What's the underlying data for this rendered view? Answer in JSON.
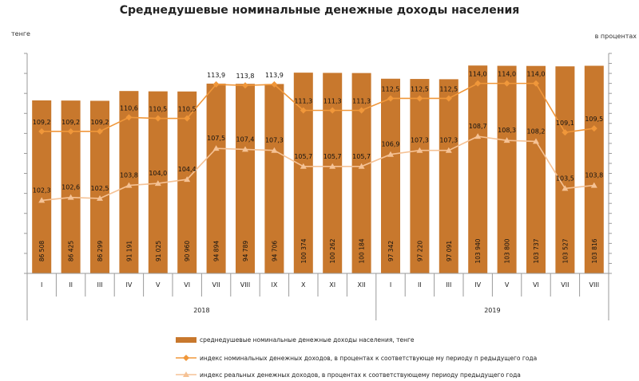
{
  "chart_data": {
    "type": "bar",
    "title": "Среднедушевые номинальные денежные доходы населения",
    "left_unit": "тенге",
    "right_unit": "в процентах",
    "years": [
      {
        "label": "2018",
        "from": 0,
        "to": 11
      },
      {
        "label": "2019",
        "from": 12,
        "to": 19
      }
    ],
    "categories": [
      "I",
      "II",
      "III",
      "IV",
      "V",
      "VI",
      "VII",
      "VIII",
      "IX",
      "X",
      "XI",
      "XII",
      "I",
      "II",
      "III",
      "IV",
      "V",
      "VI",
      "VII",
      "VIII"
    ],
    "series": [
      {
        "name": "среднедушевые номинальные денежные доходы населения, тенге",
        "kind": "bar",
        "axis": "left",
        "color": "#C8782D",
        "values": [
          86508,
          86425,
          86299,
          91191,
          91025,
          90960,
          94894,
          94789,
          94706,
          100374,
          100262,
          100184,
          97342,
          97220,
          97091,
          103940,
          103800,
          103737,
          103527,
          103816
        ],
        "labels": [
          "86 508",
          "86 425",
          "86 299",
          "91 191",
          "91 025",
          "90 960",
          "94 894",
          "94 789",
          "94 706",
          "100 374",
          "100 262",
          "100 184",
          "97 342",
          "97 220",
          "97 091",
          "103 940",
          "103 800",
          "103 737",
          "103 527",
          "103 816"
        ]
      },
      {
        "name": "индекс номинальных денежных доходов, в процентах к соответствующе му периоду п редыдущего года",
        "kind": "line",
        "axis": "right",
        "color": "#F0973A",
        "marker": "diamond",
        "values": [
          109.2,
          109.2,
          109.2,
          110.6,
          110.5,
          110.5,
          113.9,
          113.8,
          113.9,
          111.3,
          111.3,
          111.3,
          112.5,
          112.5,
          112.5,
          114.0,
          114.0,
          114.0,
          109.1,
          109.5
        ],
        "labels": [
          "109,2",
          "109,2",
          "109,2",
          "110,6",
          "110,5",
          "110,5",
          "113,9",
          "113,8",
          "113,9",
          "111,3",
          "111,3",
          "111,3",
          "112,5",
          "112,5",
          "112,5",
          "114,0",
          "114,0",
          "114,0",
          "109,1",
          "109,5"
        ]
      },
      {
        "name": "индекс реальных денежных доходов, в процентах к соответствующему периоду предыдущего года",
        "kind": "line",
        "axis": "right",
        "color": "#F5C295",
        "marker": "triangle",
        "values": [
          102.3,
          102.6,
          102.5,
          103.8,
          104.0,
          104.4,
          107.5,
          107.4,
          107.3,
          105.7,
          105.7,
          105.7,
          106.9,
          107.3,
          107.3,
          108.7,
          108.3,
          108.2,
          103.5,
          103.8
        ],
        "labels": [
          "102,3",
          "102,6",
          "102,5",
          "103,8",
          "104,0",
          "104,4",
          "107,5",
          "107,4",
          "107,3",
          "105,7",
          "105,7",
          "105,7",
          "106,9",
          "107,3",
          "107,3",
          "108,7",
          "108,3",
          "108,2",
          "103,5",
          "103,8"
        ]
      }
    ],
    "left_axis": {
      "min": 0,
      "max": 110000,
      "step": 10000
    },
    "right_axis": {
      "min": 95,
      "max": 117,
      "step": 1
    },
    "legend_position": "bottom"
  }
}
